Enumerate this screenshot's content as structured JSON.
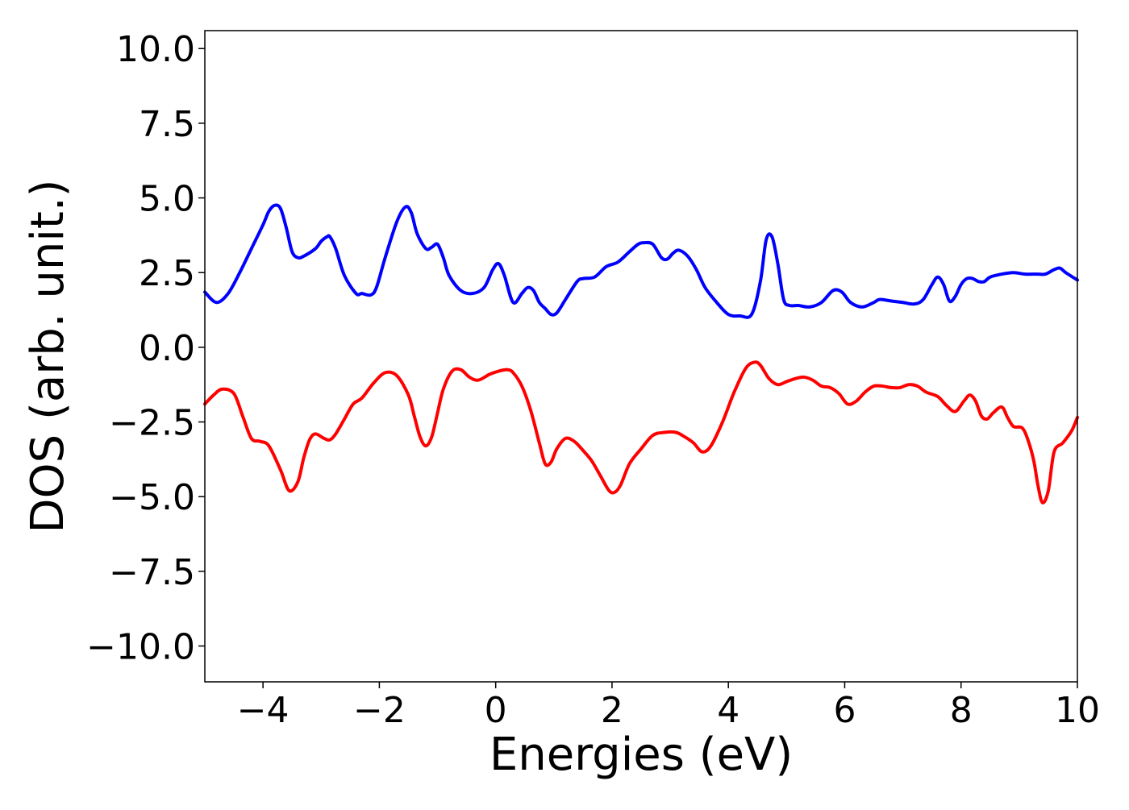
{
  "chart_data": {
    "type": "line",
    "title": "",
    "xlabel": "Energies (eV)",
    "ylabel": "DOS (arb. unit.)",
    "xlim": [
      -5,
      10
    ],
    "ylim": [
      -11.2,
      10.6
    ],
    "xticks": [
      -4,
      -2,
      0,
      2,
      4,
      6,
      8,
      10
    ],
    "xtick_labels": [
      "−4",
      "−2",
      "0",
      "2",
      "4",
      "6",
      "8",
      "10"
    ],
    "yticks": [
      10,
      7.5,
      5,
      2.5,
      0,
      -2.5,
      -5,
      -7.5,
      -10
    ],
    "ytick_labels": [
      "10.0",
      "7.5",
      "5.0",
      "2.5",
      "0.0",
      "−2.5",
      "−5.0",
      "−7.5",
      "−10.0"
    ],
    "grid": false,
    "legend": "none",
    "series": [
      {
        "color": "#0000ff",
        "x": [
          -5.0,
          -4.8,
          -4.6,
          -4.4,
          -4.2,
          -4.0,
          -3.9,
          -3.8,
          -3.7,
          -3.6,
          -3.5,
          -3.4,
          -3.3,
          -3.1,
          -3.0,
          -2.9,
          -2.85,
          -2.75,
          -2.6,
          -2.4,
          -2.3,
          -2.15,
          -2.05,
          -1.9,
          -1.7,
          -1.55,
          -1.45,
          -1.35,
          -1.2,
          -1.1,
          -1.0,
          -0.9,
          -0.8,
          -0.6,
          -0.4,
          -0.2,
          -0.05,
          0.05,
          0.15,
          0.3,
          0.45,
          0.55,
          0.65,
          0.75,
          0.85,
          0.95,
          1.05,
          1.2,
          1.4,
          1.5,
          1.7,
          1.9,
          2.1,
          2.3,
          2.45,
          2.55,
          2.7,
          2.85,
          2.95,
          3.05,
          3.15,
          3.3,
          3.45,
          3.6,
          3.8,
          4.0,
          4.2,
          4.4,
          4.55,
          4.65,
          4.75,
          4.85,
          4.95,
          5.05,
          5.2,
          5.4,
          5.6,
          5.8,
          5.95,
          6.1,
          6.3,
          6.5,
          6.6,
          6.8,
          7.0,
          7.2,
          7.35,
          7.5,
          7.6,
          7.7,
          7.8,
          7.9,
          8.0,
          8.1,
          8.2,
          8.3,
          8.4,
          8.5,
          8.7,
          8.9,
          9.1,
          9.3,
          9.45,
          9.6,
          9.7,
          9.8,
          10.0
        ],
        "y": [
          1.85,
          1.5,
          1.8,
          2.5,
          3.3,
          4.1,
          4.55,
          4.75,
          4.65,
          4.0,
          3.2,
          3.0,
          3.05,
          3.3,
          3.55,
          3.7,
          3.7,
          3.3,
          2.4,
          1.8,
          1.8,
          1.75,
          2.0,
          3.0,
          4.2,
          4.7,
          4.5,
          3.8,
          3.3,
          3.35,
          3.45,
          3.0,
          2.4,
          1.9,
          1.8,
          2.0,
          2.6,
          2.8,
          2.4,
          1.5,
          1.8,
          2.0,
          1.9,
          1.5,
          1.3,
          1.1,
          1.15,
          1.6,
          2.2,
          2.3,
          2.35,
          2.7,
          2.85,
          3.2,
          3.45,
          3.5,
          3.45,
          3.0,
          2.95,
          3.15,
          3.25,
          3.05,
          2.6,
          2.0,
          1.5,
          1.1,
          1.05,
          1.1,
          2.2,
          3.6,
          3.7,
          2.8,
          1.6,
          1.4,
          1.4,
          1.35,
          1.5,
          1.9,
          1.85,
          1.5,
          1.35,
          1.5,
          1.6,
          1.55,
          1.5,
          1.45,
          1.6,
          2.1,
          2.35,
          2.1,
          1.55,
          1.7,
          2.1,
          2.3,
          2.3,
          2.2,
          2.2,
          2.35,
          2.45,
          2.5,
          2.45,
          2.45,
          2.45,
          2.6,
          2.65,
          2.5,
          2.25
        ]
      },
      {
        "color": "#ff0000",
        "x": [
          -5.0,
          -4.85,
          -4.7,
          -4.5,
          -4.35,
          -4.2,
          -4.05,
          -3.9,
          -3.7,
          -3.55,
          -3.4,
          -3.3,
          -3.2,
          -3.1,
          -2.95,
          -2.85,
          -2.75,
          -2.6,
          -2.45,
          -2.3,
          -2.1,
          -1.9,
          -1.7,
          -1.5,
          -1.4,
          -1.3,
          -1.2,
          -1.1,
          -1.0,
          -0.9,
          -0.75,
          -0.6,
          -0.45,
          -0.3,
          -0.1,
          0.05,
          0.2,
          0.3,
          0.45,
          0.6,
          0.75,
          0.85,
          0.95,
          1.05,
          1.2,
          1.35,
          1.5,
          1.65,
          1.8,
          1.95,
          2.05,
          2.15,
          2.3,
          2.5,
          2.7,
          2.9,
          3.1,
          3.25,
          3.4,
          3.55,
          3.7,
          3.9,
          4.1,
          4.3,
          4.45,
          4.55,
          4.7,
          4.85,
          5.0,
          5.15,
          5.3,
          5.45,
          5.6,
          5.75,
          5.9,
          6.05,
          6.2,
          6.35,
          6.5,
          6.65,
          6.8,
          6.95,
          7.1,
          7.25,
          7.4,
          7.6,
          7.75,
          7.9,
          8.05,
          8.15,
          8.25,
          8.35,
          8.45,
          8.55,
          8.7,
          8.8,
          8.9,
          9.05,
          9.15,
          9.25,
          9.32,
          9.4,
          9.5,
          9.6,
          9.75,
          9.9,
          10.0
        ],
        "y": [
          -1.9,
          -1.6,
          -1.4,
          -1.55,
          -2.3,
          -3.05,
          -3.15,
          -3.3,
          -4.1,
          -4.8,
          -4.5,
          -3.7,
          -3.1,
          -2.9,
          -3.05,
          -3.1,
          -2.9,
          -2.4,
          -1.9,
          -1.7,
          -1.2,
          -0.85,
          -0.95,
          -1.6,
          -2.3,
          -3.0,
          -3.3,
          -3.0,
          -2.2,
          -1.4,
          -0.8,
          -0.75,
          -1.0,
          -1.1,
          -0.9,
          -0.8,
          -0.75,
          -0.85,
          -1.3,
          -2.1,
          -3.2,
          -3.9,
          -3.85,
          -3.4,
          -3.05,
          -3.15,
          -3.45,
          -3.8,
          -4.3,
          -4.8,
          -4.85,
          -4.6,
          -3.9,
          -3.4,
          -2.95,
          -2.85,
          -2.85,
          -3.0,
          -3.2,
          -3.5,
          -3.3,
          -2.5,
          -1.5,
          -0.7,
          -0.5,
          -0.6,
          -1.05,
          -1.25,
          -1.15,
          -1.05,
          -1.0,
          -1.1,
          -1.3,
          -1.35,
          -1.55,
          -1.9,
          -1.8,
          -1.5,
          -1.3,
          -1.3,
          -1.35,
          -1.35,
          -1.25,
          -1.3,
          -1.5,
          -1.65,
          -1.95,
          -2.15,
          -1.8,
          -1.6,
          -1.8,
          -2.3,
          -2.4,
          -2.2,
          -2.0,
          -2.35,
          -2.65,
          -2.7,
          -3.1,
          -3.8,
          -4.6,
          -5.2,
          -4.8,
          -3.5,
          -3.2,
          -2.8,
          -2.35
        ]
      }
    ]
  }
}
